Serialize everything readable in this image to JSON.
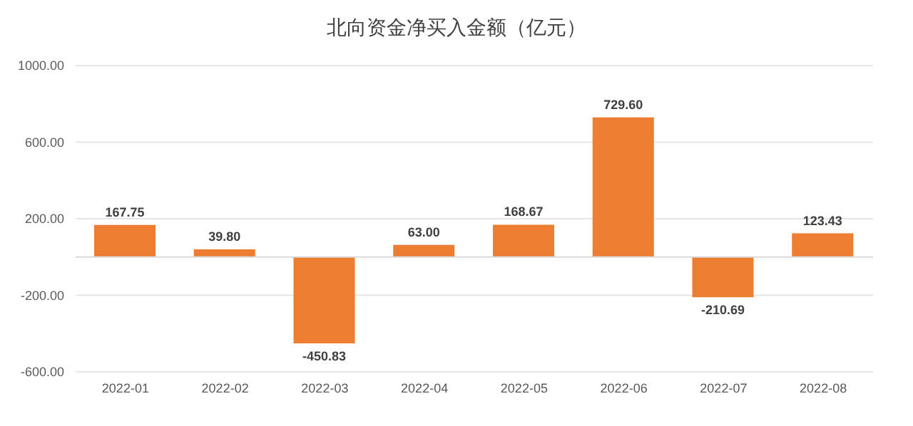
{
  "chart_data": {
    "type": "bar",
    "title": "北向资金净买入金额（亿元）",
    "categories": [
      "2022-01",
      "2022-02",
      "2022-03",
      "2022-04",
      "2022-05",
      "2022-06",
      "2022-07",
      "2022-08"
    ],
    "values": [
      167.75,
      39.8,
      -450.83,
      63,
      168.67,
      729.6,
      -210.69,
      123.43
    ],
    "value_labels": [
      "167.75",
      "39.80",
      "-450.83",
      "63.00",
      "168.67",
      "729.60",
      "-210.69",
      "123.43"
    ],
    "color": "#ed7d31",
    "ylim": [
      -600,
      1000
    ],
    "yticks": [
      {
        "value": -600,
        "label": "-600.00"
      },
      {
        "value": -200,
        "label": "-200.00"
      },
      {
        "value": 200,
        "label": "200.00"
      },
      {
        "value": 600,
        "label": "600.00"
      },
      {
        "value": 1000,
        "label": "1000.00"
      }
    ],
    "grid": "y",
    "legend": false
  }
}
